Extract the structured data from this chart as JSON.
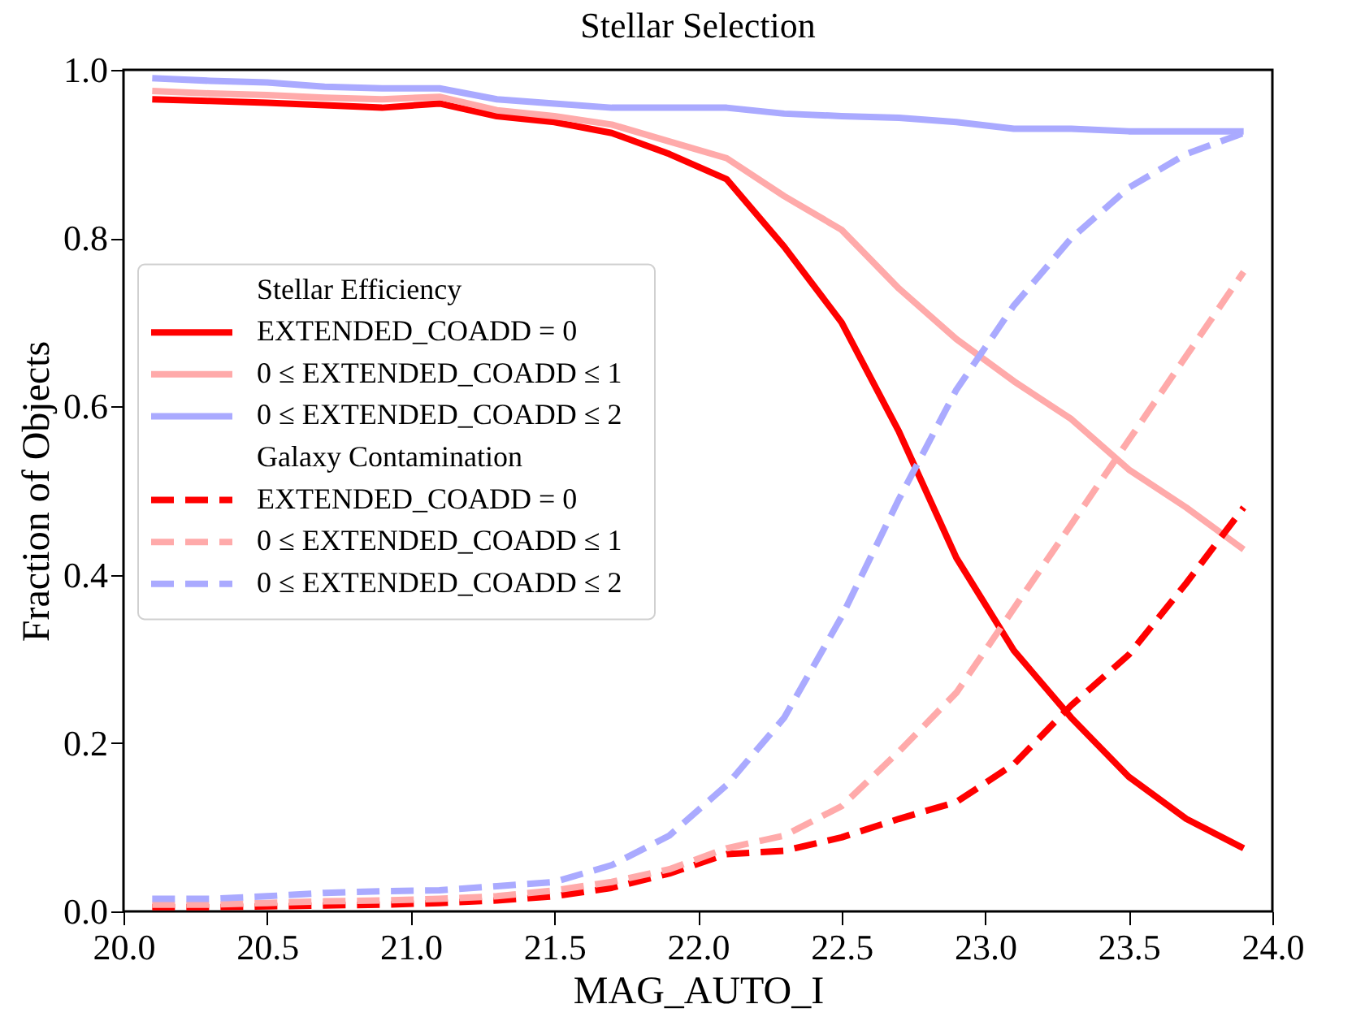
{
  "chart_data": {
    "type": "line",
    "title": "Stellar Selection",
    "xlabel": "MAG_AUTO_I",
    "ylabel": "Fraction of Objects",
    "x": [
      20.1,
      20.3,
      20.5,
      20.7,
      20.9,
      21.1,
      21.3,
      21.5,
      21.7,
      21.9,
      22.1,
      22.3,
      22.5,
      22.7,
      22.9,
      23.1,
      23.3,
      23.5,
      23.7,
      23.9
    ],
    "legend_title": "Stellar Efficiency",
    "annotations": [
      "Galaxy Contamination"
    ],
    "series": [
      {
        "name": "EXTENDED_COADD = 0",
        "color": "#ff0000",
        "line_style": "solid",
        "values": [
          0.965,
          0.963,
          0.961,
          0.958,
          0.955,
          0.96,
          0.945,
          0.938,
          0.925,
          0.9,
          0.87,
          0.79,
          0.7,
          0.57,
          0.42,
          0.31,
          0.23,
          0.16,
          0.11,
          0.075
        ]
      },
      {
        "name": "0 ≤ EXTENDED_COADD ≤ 1",
        "color": "#ffaaaa",
        "line_style": "solid",
        "values": [
          0.975,
          0.972,
          0.97,
          0.967,
          0.965,
          0.968,
          0.952,
          0.945,
          0.935,
          0.915,
          0.895,
          0.85,
          0.81,
          0.74,
          0.68,
          0.63,
          0.585,
          0.525,
          0.48,
          0.43
        ]
      },
      {
        "name": "0 ≤ EXTENDED_COADD ≤ 2",
        "color": "#aaaaff",
        "line_style": "solid",
        "values": [
          0.99,
          0.987,
          0.985,
          0.98,
          0.978,
          0.978,
          0.965,
          0.96,
          0.955,
          0.955,
          0.955,
          0.948,
          0.945,
          0.943,
          0.938,
          0.93,
          0.93,
          0.927,
          0.927,
          0.927
        ]
      },
      {
        "name": "EXTENDED_COADD = 0",
        "color": "#ff0000",
        "line_style": "dashed",
        "values": [
          0.005,
          0.005,
          0.006,
          0.007,
          0.008,
          0.01,
          0.013,
          0.018,
          0.028,
          0.045,
          0.068,
          0.072,
          0.088,
          0.11,
          0.13,
          0.175,
          0.245,
          0.305,
          0.39,
          0.48
        ]
      },
      {
        "name": "0 ≤ EXTENDED_COADD ≤ 1",
        "color": "#ffaaaa",
        "line_style": "dashed",
        "values": [
          0.008,
          0.008,
          0.01,
          0.012,
          0.013,
          0.015,
          0.018,
          0.025,
          0.035,
          0.05,
          0.075,
          0.09,
          0.125,
          0.19,
          0.26,
          0.36,
          0.46,
          0.56,
          0.66,
          0.76
        ]
      },
      {
        "name": "0 ≤ EXTENDED_COADD ≤ 2",
        "color": "#aaaaff",
        "line_style": "dashed",
        "values": [
          0.015,
          0.015,
          0.018,
          0.022,
          0.024,
          0.025,
          0.03,
          0.035,
          0.055,
          0.09,
          0.15,
          0.23,
          0.35,
          0.49,
          0.62,
          0.72,
          0.8,
          0.86,
          0.9,
          0.925
        ]
      }
    ],
    "xlim": [
      20.0,
      24.0
    ],
    "xticks": [
      {
        "value": 20,
        "label": "20.0"
      },
      20.5,
      {
        "value": 21,
        "label": "21.0"
      },
      21.5,
      {
        "value": 22,
        "label": "22.0"
      },
      22.5,
      {
        "value": 23,
        "label": "23.0"
      },
      23.5,
      {
        "value": 24,
        "label": "24.0"
      }
    ],
    "ylim": [
      0.0,
      1.0
    ],
    "yticks": [
      {
        "value": 0,
        "label": "0.0"
      },
      0.2,
      0.4,
      0.6,
      0.8,
      {
        "value": 1,
        "label": "1.0"
      }
    ],
    "grid": false,
    "legend": "center left"
  }
}
